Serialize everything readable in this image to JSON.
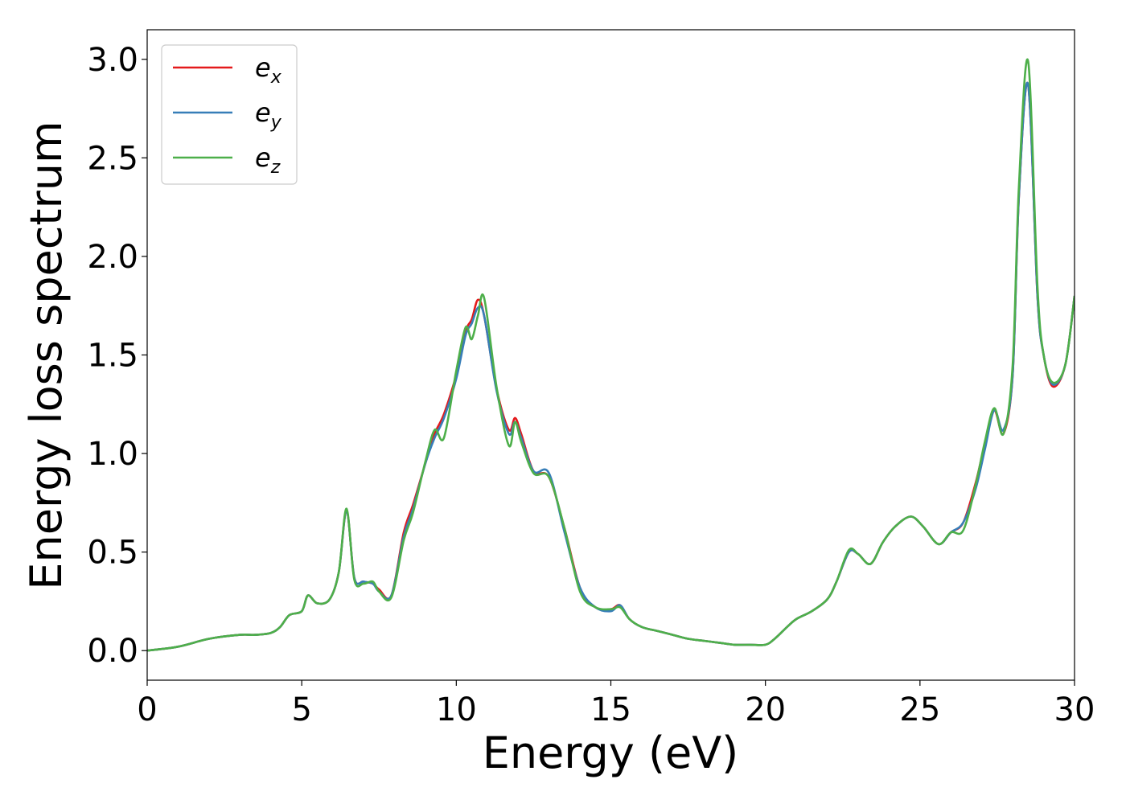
{
  "chart_data": {
    "type": "line",
    "xlabel": "Energy (eV)",
    "ylabel": "Energy loss spectrum",
    "xlim": [
      0,
      30
    ],
    "ylim": [
      -0.15,
      3.15
    ],
    "xticks": [
      0,
      5,
      10,
      15,
      20,
      25,
      30
    ],
    "yticks": [
      0.0,
      0.5,
      1.0,
      1.5,
      2.0,
      2.5,
      3.0
    ],
    "xtick_labels": [
      "0",
      "5",
      "10",
      "15",
      "20",
      "25",
      "30"
    ],
    "ytick_labels": [
      "0.0",
      "0.5",
      "1.0",
      "1.5",
      "2.0",
      "2.5",
      "3.0"
    ],
    "grid": false,
    "legend_position": "top-left",
    "series": [
      {
        "name": "ex",
        "label_base": "e",
        "label_sub": "x",
        "color": "#e41a1c",
        "x": [
          0,
          1,
          2,
          3,
          3.5,
          4,
          4.3,
          4.6,
          5,
          5.2,
          5.5,
          5.9,
          6.2,
          6.45,
          6.7,
          7,
          7.3,
          7.5,
          7.9,
          8.3,
          8.6,
          9,
          9.3,
          9.6,
          10,
          10.3,
          10.5,
          10.7,
          10.9,
          11.3,
          11.7,
          11.9,
          12.1,
          12.5,
          13,
          13.5,
          14,
          14.5,
          15,
          15.3,
          15.6,
          16,
          16.5,
          17,
          17.5,
          18,
          18.5,
          19,
          19.5,
          20,
          20.3,
          20.7,
          21,
          21.5,
          22,
          22.3,
          22.7,
          23,
          23.4,
          23.8,
          24.2,
          24.7,
          25.1,
          25.6,
          26,
          26.4,
          26.8,
          27.1,
          27.4,
          27.7,
          28,
          28.2,
          28.5,
          28.8,
          29,
          29.3,
          29.7,
          30
        ],
        "y": [
          0,
          0.02,
          0.06,
          0.08,
          0.08,
          0.09,
          0.12,
          0.18,
          0.2,
          0.28,
          0.24,
          0.26,
          0.4,
          0.71,
          0.37,
          0.35,
          0.34,
          0.31,
          0.28,
          0.6,
          0.74,
          0.95,
          1.1,
          1.2,
          1.4,
          1.62,
          1.68,
          1.78,
          1.7,
          1.33,
          1.12,
          1.18,
          1.1,
          0.91,
          0.88,
          0.62,
          0.32,
          0.22,
          0.21,
          0.23,
          0.16,
          0.12,
          0.1,
          0.08,
          0.06,
          0.05,
          0.04,
          0.03,
          0.03,
          0.03,
          0.06,
          0.12,
          0.16,
          0.2,
          0.26,
          0.35,
          0.5,
          0.49,
          0.44,
          0.55,
          0.63,
          0.68,
          0.63,
          0.54,
          0.6,
          0.65,
          0.85,
          1.05,
          1.22,
          1.1,
          1.4,
          2.3,
          2.87,
          1.8,
          1.5,
          1.34,
          1.45,
          1.8
        ]
      },
      {
        "name": "ey",
        "label_base": "e",
        "label_sub": "y",
        "color": "#377eb8",
        "x": [
          0,
          1,
          2,
          3,
          3.5,
          4,
          4.3,
          4.6,
          5,
          5.2,
          5.5,
          5.9,
          6.2,
          6.45,
          6.7,
          7,
          7.3,
          7.5,
          7.9,
          8.3,
          8.6,
          9,
          9.3,
          9.6,
          10,
          10.3,
          10.5,
          10.7,
          10.9,
          11.3,
          11.7,
          11.9,
          12.1,
          12.5,
          13,
          13.5,
          14,
          14.5,
          15,
          15.3,
          15.6,
          16,
          16.5,
          17,
          17.5,
          18,
          18.5,
          19,
          19.5,
          20,
          20.3,
          20.7,
          21,
          21.5,
          22,
          22.3,
          22.7,
          23,
          23.4,
          23.8,
          24.2,
          24.7,
          25.1,
          25.6,
          26,
          26.4,
          26.8,
          27.1,
          27.4,
          27.7,
          28,
          28.2,
          28.5,
          28.8,
          29,
          29.3,
          29.7,
          30
        ],
        "y": [
          0,
          0.02,
          0.06,
          0.08,
          0.08,
          0.09,
          0.12,
          0.18,
          0.2,
          0.28,
          0.24,
          0.26,
          0.4,
          0.71,
          0.37,
          0.35,
          0.34,
          0.3,
          0.28,
          0.58,
          0.72,
          0.95,
          1.08,
          1.18,
          1.38,
          1.6,
          1.66,
          1.74,
          1.7,
          1.32,
          1.1,
          1.16,
          1.08,
          0.91,
          0.9,
          0.6,
          0.32,
          0.22,
          0.2,
          0.23,
          0.16,
          0.12,
          0.1,
          0.08,
          0.06,
          0.05,
          0.04,
          0.03,
          0.03,
          0.03,
          0.06,
          0.12,
          0.16,
          0.2,
          0.26,
          0.35,
          0.5,
          0.49,
          0.44,
          0.55,
          0.63,
          0.68,
          0.63,
          0.54,
          0.6,
          0.65,
          0.82,
          1.02,
          1.22,
          1.12,
          1.4,
          2.3,
          2.87,
          1.8,
          1.5,
          1.35,
          1.45,
          1.8
        ]
      },
      {
        "name": "ez",
        "label_base": "e",
        "label_sub": "z",
        "color": "#4daf4a",
        "x": [
          0,
          1,
          2,
          3,
          3.5,
          4,
          4.3,
          4.6,
          5,
          5.2,
          5.5,
          5.9,
          6.2,
          6.45,
          6.7,
          7,
          7.3,
          7.5,
          7.9,
          8.3,
          8.6,
          9,
          9.3,
          9.6,
          10,
          10.3,
          10.5,
          10.7,
          10.9,
          11.3,
          11.7,
          11.9,
          12.1,
          12.5,
          13,
          13.5,
          14,
          14.5,
          15,
          15.3,
          15.6,
          16,
          16.5,
          17,
          17.5,
          18,
          18.5,
          19,
          19.5,
          20,
          20.3,
          20.7,
          21,
          21.5,
          22,
          22.3,
          22.7,
          23,
          23.4,
          23.8,
          24.2,
          24.7,
          25.1,
          25.6,
          26,
          26.4,
          26.8,
          27.1,
          27.4,
          27.7,
          28,
          28.2,
          28.5,
          28.8,
          29,
          29.3,
          29.7,
          30
        ],
        "y": [
          0,
          0.02,
          0.06,
          0.08,
          0.08,
          0.09,
          0.12,
          0.18,
          0.2,
          0.28,
          0.24,
          0.26,
          0.4,
          0.72,
          0.36,
          0.34,
          0.35,
          0.3,
          0.27,
          0.56,
          0.7,
          0.96,
          1.12,
          1.08,
          1.42,
          1.64,
          1.58,
          1.7,
          1.79,
          1.34,
          1.04,
          1.16,
          1.06,
          0.9,
          0.88,
          0.62,
          0.3,
          0.22,
          0.21,
          0.22,
          0.16,
          0.12,
          0.1,
          0.08,
          0.06,
          0.05,
          0.04,
          0.03,
          0.03,
          0.03,
          0.06,
          0.12,
          0.16,
          0.2,
          0.26,
          0.35,
          0.51,
          0.49,
          0.44,
          0.55,
          0.63,
          0.68,
          0.63,
          0.54,
          0.6,
          0.61,
          0.84,
          1.06,
          1.23,
          1.1,
          1.45,
          2.35,
          2.99,
          1.85,
          1.5,
          1.36,
          1.45,
          1.8
        ]
      }
    ]
  }
}
